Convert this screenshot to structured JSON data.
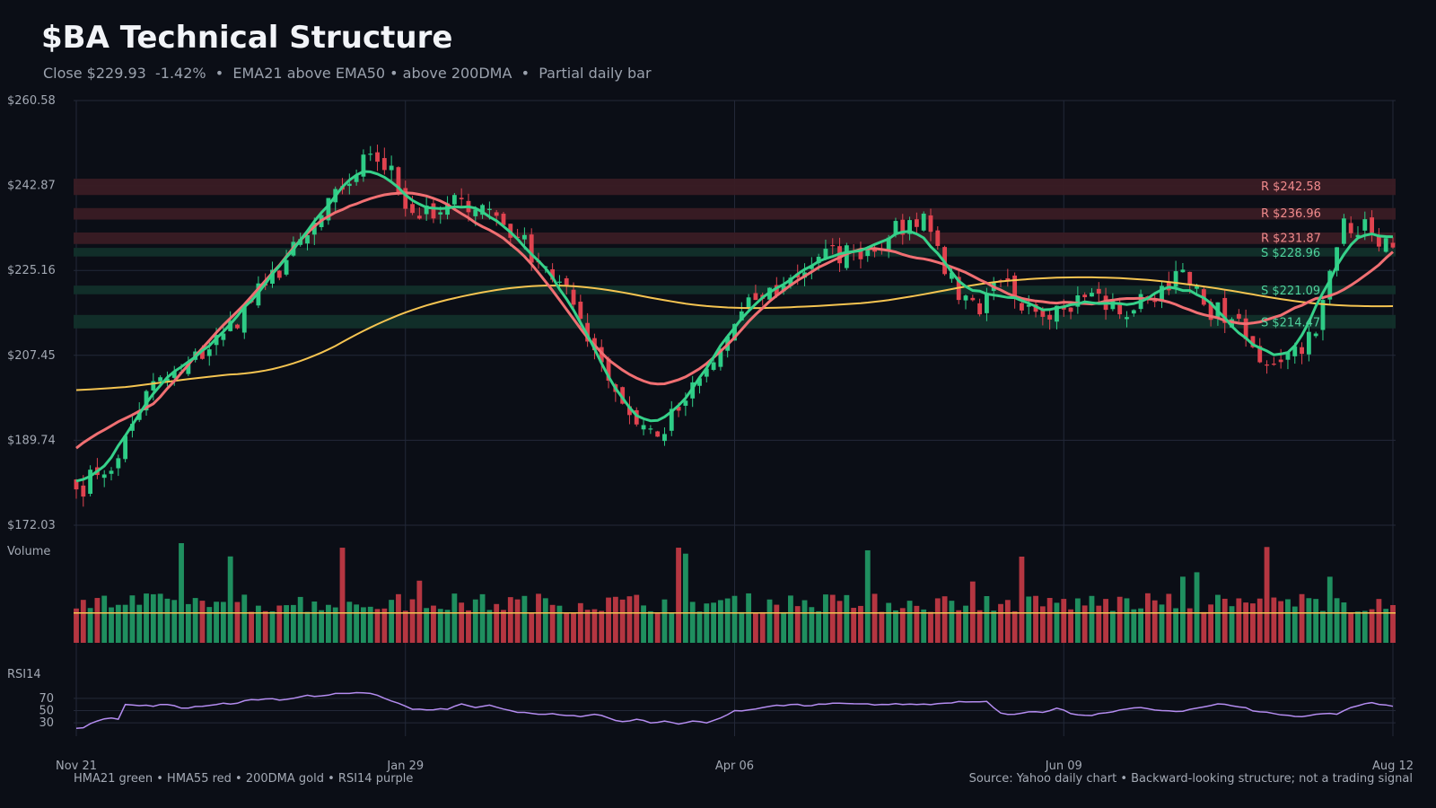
{
  "header": {
    "title": "$BA Technical Structure",
    "subtitle": "Close $229.93  -1.42%  •  EMA21 above EMA50 • above 200DMA  •  Partial daily bar"
  },
  "footer": {
    "legend": "HMA21 green • HMA55 red • 200DMA gold  •  RSI14 purple",
    "source": "Source: Yahoo daily chart • Backward-looking structure; not a trading signal"
  },
  "colors": {
    "background": "#0b0e16",
    "up": "#2ecc86",
    "down": "#e0434f",
    "hma21": "#36d18a",
    "hma55": "#f06f72",
    "dma200": "#f5c451",
    "rsi": "#b48cf0",
    "resistance_zone": "#3a1c24",
    "support_zone": "#12302a",
    "grid": "#232838"
  },
  "chart_data": {
    "type": "candlestick",
    "title": "$BA Technical Structure",
    "price_axis": {
      "ylim": [
        172.03,
        260.58
      ],
      "tick_labels": [
        "$260.58",
        "$242.87",
        "$225.16",
        "$207.45",
        "$189.74",
        "$172.03"
      ]
    },
    "x_axis": {
      "tick_labels": [
        "Nov 21",
        "Jan 29",
        "Apr 06",
        "Jun 09",
        "Aug 12"
      ],
      "tick_bar_index": [
        0,
        47,
        94,
        141,
        188
      ]
    },
    "bar_count": 189,
    "close_anchors": {
      "bar_index": [
        0,
        3,
        6,
        10,
        15,
        21,
        27,
        33,
        38,
        42,
        45,
        47,
        51,
        55,
        59,
        63,
        67,
        71,
        75,
        79,
        83,
        87,
        91,
        94,
        97,
        101,
        106,
        111,
        116,
        121,
        126,
        129,
        132,
        136,
        141,
        145,
        149,
        153,
        157,
        161,
        165,
        169,
        173,
        177,
        181,
        185,
        188
      ],
      "close": [
        179.5,
        182.5,
        186.0,
        200.0,
        204.0,
        212.0,
        222.0,
        232.5,
        242.0,
        249.5,
        247.0,
        238.0,
        236.0,
        240.0,
        238.0,
        232.0,
        226.0,
        218.0,
        206.0,
        195.0,
        190.5,
        198.0,
        206.0,
        214.0,
        219.0,
        222.0,
        228.0,
        229.0,
        232.0,
        237.0,
        219.0,
        216.0,
        223.0,
        218.0,
        217.0,
        220.5,
        216.0,
        219.0,
        225.0,
        218.0,
        215.0,
        206.0,
        208.0,
        212.0,
        236.0,
        233.0,
        229.93
      ]
    },
    "levels": [
      {
        "kind": "resistance",
        "label": "R $242.58",
        "price": 242.58
      },
      {
        "kind": "resistance",
        "label": "R $236.96",
        "price": 236.96
      },
      {
        "kind": "resistance",
        "label": "R $231.87",
        "price": 231.87
      },
      {
        "kind": "support",
        "label": "S $228.96",
        "price": 228.96
      },
      {
        "kind": "support",
        "label": "S $221.09",
        "price": 221.09
      },
      {
        "kind": "support",
        "label": "S $214.47",
        "price": 214.47
      }
    ],
    "series": [
      {
        "name": "HMA21"
      },
      {
        "name": "HMA55"
      },
      {
        "name": "200DMA"
      }
    ],
    "volume": {
      "label": "Volume",
      "avg_line_level": 0.3
    },
    "rsi": {
      "label": "RSI14",
      "ylim": [
        20,
        80
      ],
      "tick_labels": [
        "70",
        "50",
        "30"
      ],
      "tick_values": [
        70,
        50,
        30
      ],
      "anchors": {
        "bar_index": [
          0,
          1,
          3,
          5,
          6,
          7,
          9,
          11,
          13,
          15,
          18,
          20,
          23,
          25,
          27,
          29,
          31,
          33,
          35,
          37,
          39,
          41,
          42,
          44,
          46,
          48,
          50,
          53,
          55,
          57,
          59,
          62,
          64,
          66,
          68,
          70,
          72,
          74,
          76,
          78,
          80,
          82,
          84,
          86,
          88,
          90,
          92,
          94,
          96,
          99,
          102,
          105,
          108,
          112,
          116,
          120,
          124,
          127,
          130,
          132,
          134,
          136,
          138,
          140,
          142,
          145,
          148,
          152,
          155,
          158,
          161,
          163,
          166,
          169,
          172,
          175,
          177,
          180,
          182,
          185,
          188
        ],
        "value": [
          21,
          22,
          33,
          38,
          36,
          60,
          58,
          57,
          60,
          54,
          57,
          60,
          62,
          68,
          69,
          67,
          70,
          75,
          74,
          78,
          78,
          79,
          78,
          70,
          62,
          52,
          51,
          52,
          61,
          55,
          59,
          50,
          47,
          44,
          45,
          42,
          40,
          44,
          38,
          32,
          36,
          30,
          33,
          28,
          33,
          30,
          38,
          50,
          51,
          57,
          60,
          58,
          62,
          61,
          60,
          60,
          62,
          64,
          65,
          46,
          44,
          48,
          47,
          54,
          45,
          42,
          48,
          55,
          50,
          49,
          56,
          61,
          56,
          48,
          43,
          40,
          44,
          44,
          55,
          63,
          57
        ]
      }
    }
  }
}
